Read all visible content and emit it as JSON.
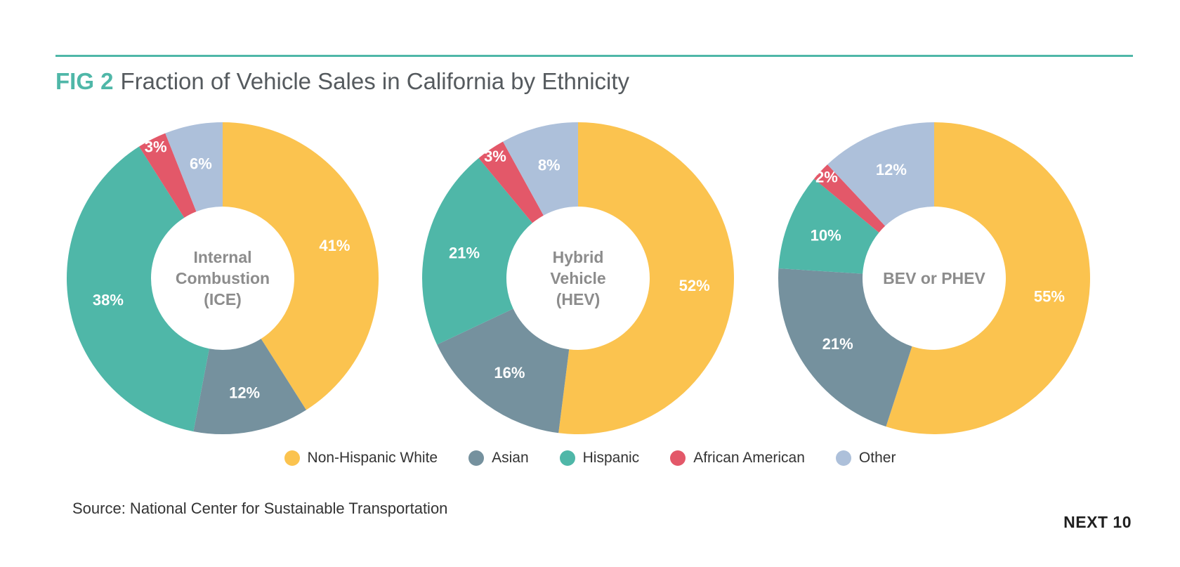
{
  "header": {
    "fig_label": "FIG 2",
    "title": "Fraction of Vehicle Sales in California by Ethnicity"
  },
  "colors": {
    "Non-Hispanic White": "#fbc34f",
    "Asian": "#75919e",
    "Hispanic": "#4fb7a8",
    "African American": "#e35869",
    "Other": "#adc0da"
  },
  "legend": [
    {
      "label": "Non-Hispanic White",
      "color": "#fbc34f"
    },
    {
      "label": "Asian",
      "color": "#75919e"
    },
    {
      "label": "Hispanic",
      "color": "#4fb7a8"
    },
    {
      "label": "African American",
      "color": "#e35869"
    },
    {
      "label": "Other",
      "color": "#adc0da"
    }
  ],
  "chart_data": [
    {
      "type": "pie",
      "center_label": [
        "Internal",
        "Combustion",
        "(ICE)"
      ],
      "categories": [
        "Non-Hispanic White",
        "Asian",
        "Hispanic",
        "African American",
        "Other"
      ],
      "values": [
        41,
        12,
        38,
        3,
        6
      ],
      "labels": [
        "41%",
        "12%",
        "38%",
        "3%",
        "6%"
      ]
    },
    {
      "type": "pie",
      "center_label": [
        "Hybrid",
        "Vehicle",
        "(HEV)"
      ],
      "categories": [
        "Non-Hispanic White",
        "Asian",
        "Hispanic",
        "African American",
        "Other"
      ],
      "values": [
        52,
        16,
        21,
        3,
        8
      ],
      "labels": [
        "52%",
        "16%",
        "21%",
        "3%",
        "8%"
      ]
    },
    {
      "type": "pie",
      "center_label": [
        "BEV or PHEV"
      ],
      "categories": [
        "Non-Hispanic White",
        "Asian",
        "Hispanic",
        "African American",
        "Other"
      ],
      "values": [
        55,
        21,
        10,
        2,
        12
      ],
      "labels": [
        "55%",
        "21%",
        "10%",
        "2%",
        "12%"
      ]
    }
  ],
  "footer": {
    "source": "Source: National Center for Sustainable Transportation",
    "brand": "NEXT 10"
  }
}
